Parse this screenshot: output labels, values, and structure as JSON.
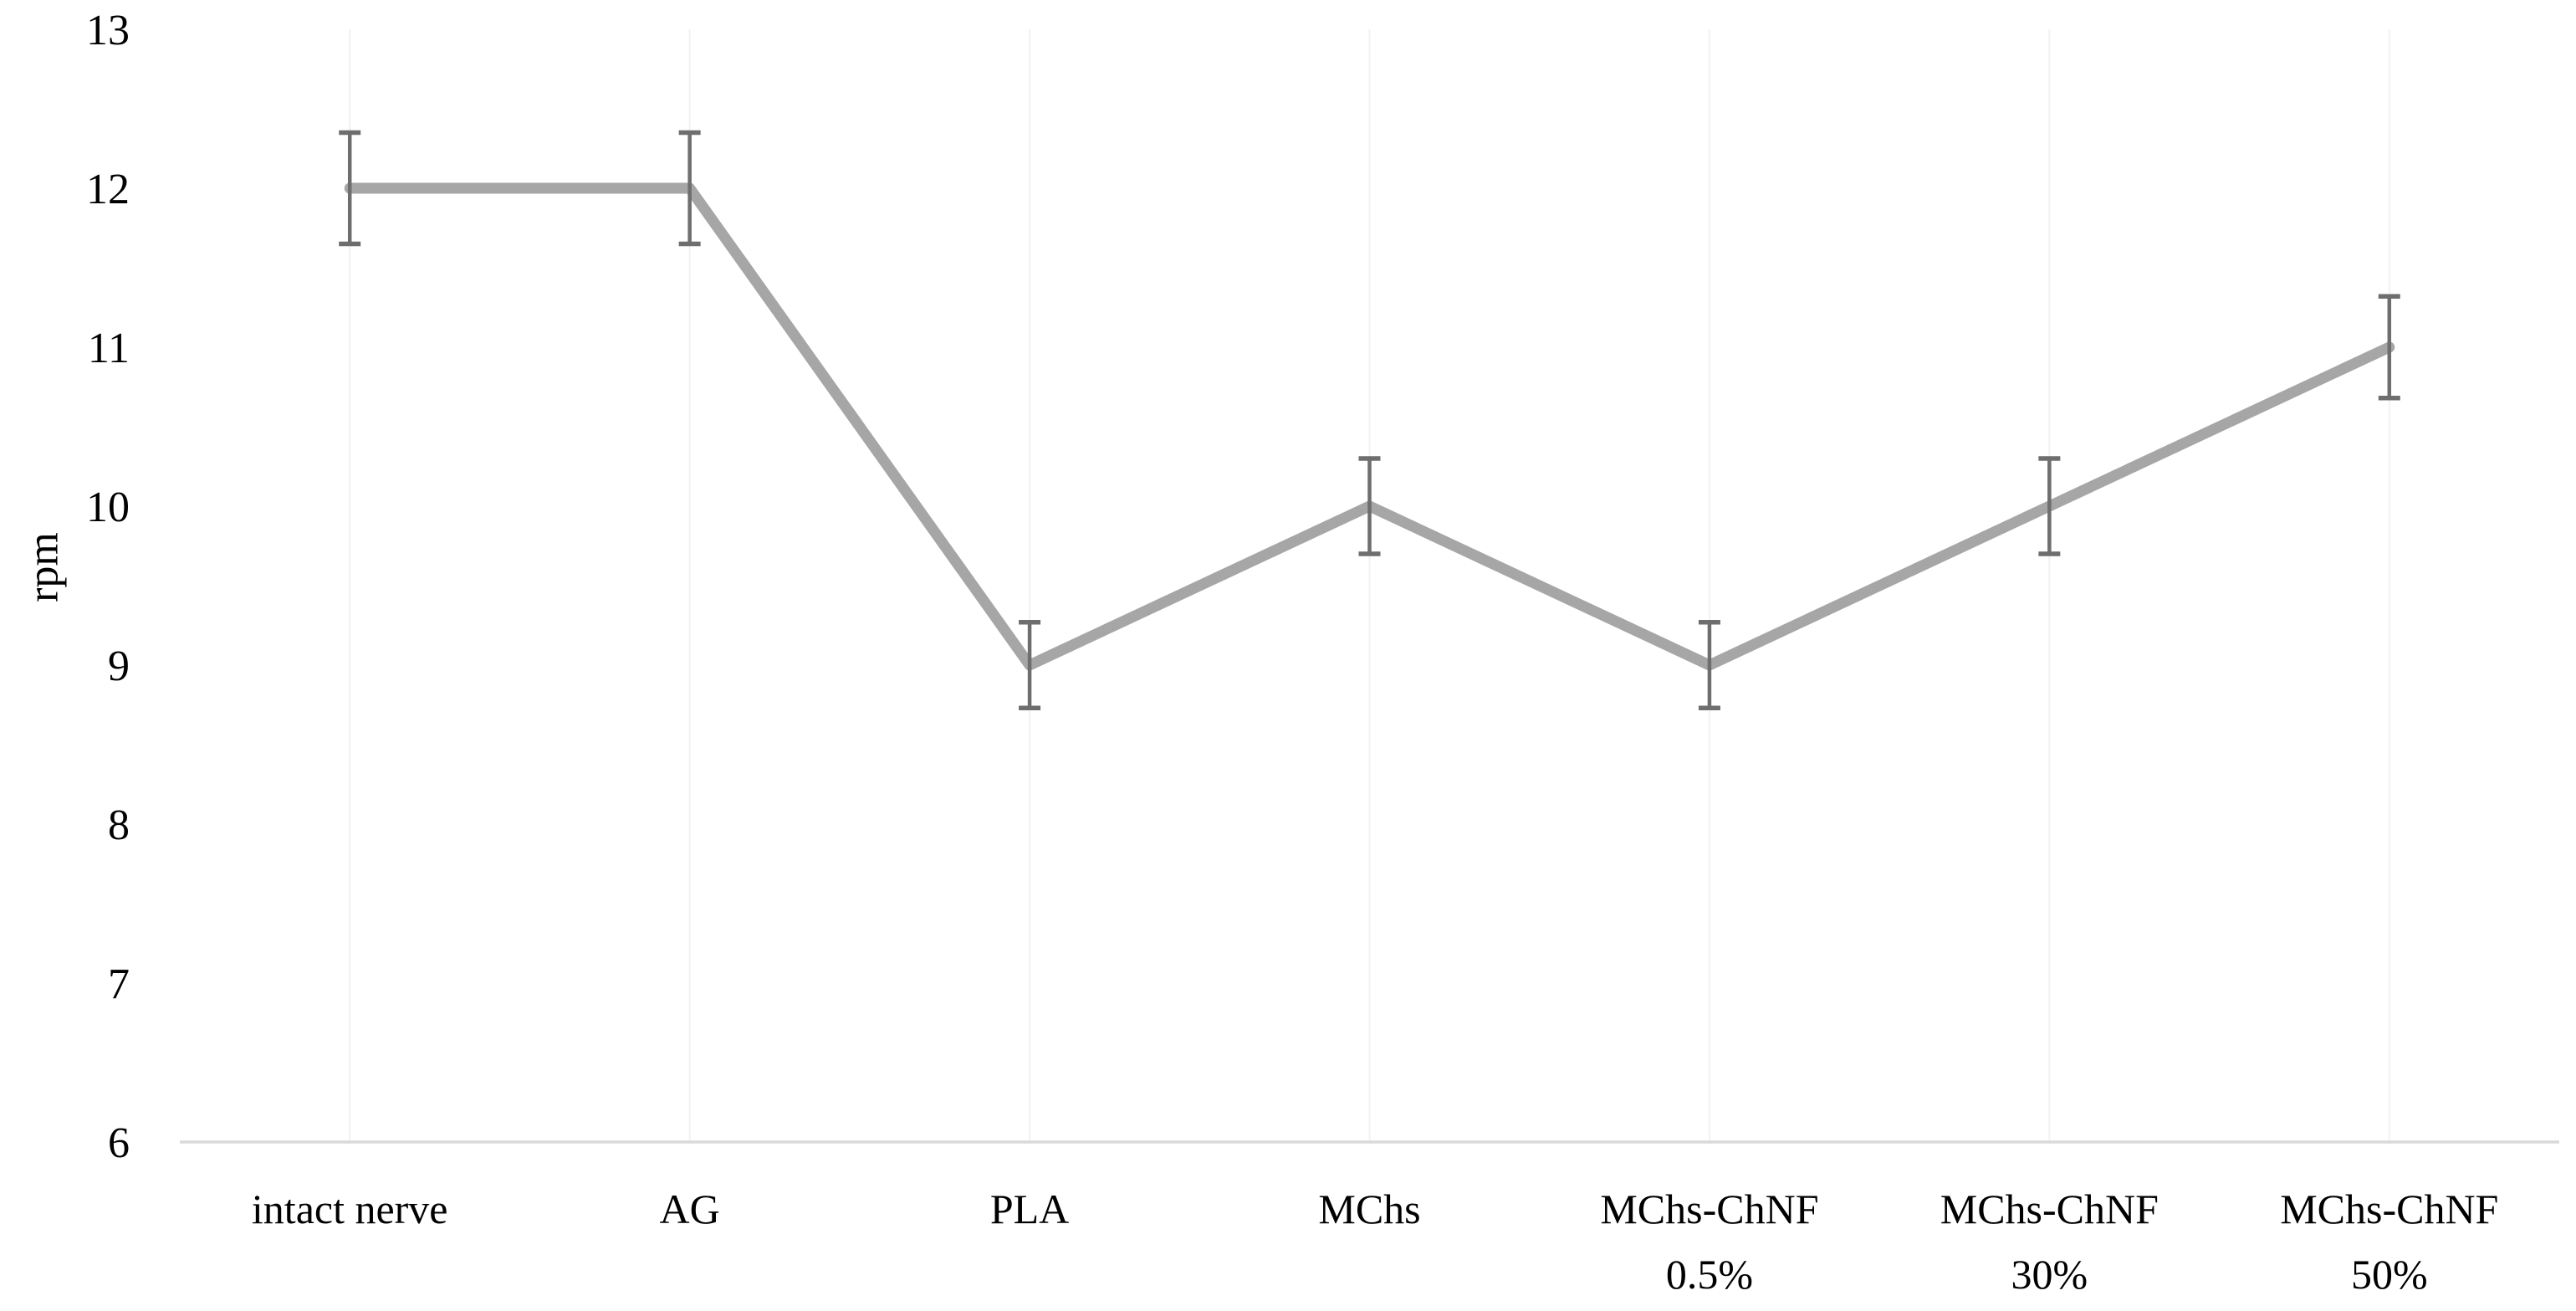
{
  "chart_data": {
    "type": "line",
    "title": "",
    "xlabel": "",
    "ylabel": "rpm",
    "categories": [
      "intact nerve",
      "AG",
      "PLA",
      "MChs",
      "MChs-ChNF 0.5%",
      "MChs-ChNF 30%",
      "MChs-ChNF 50%"
    ],
    "category_label_lines": [
      [
        "intact nerve"
      ],
      [
        "AG"
      ],
      [
        "PLA"
      ],
      [
        "MChs"
      ],
      [
        "MChs-ChNF",
        "0.5%"
      ],
      [
        "MChs-ChNF",
        "30%"
      ],
      [
        "MChs-ChNF",
        "50%"
      ]
    ],
    "series": [
      {
        "name": "rpm",
        "values": [
          12,
          12,
          9,
          10,
          9,
          10,
          11
        ],
        "error_bars": [
          0.35,
          0.35,
          0.27,
          0.3,
          0.27,
          0.3,
          0.32
        ]
      }
    ],
    "ylim": [
      6,
      13
    ],
    "yticks": [
      6,
      7,
      8,
      9,
      10,
      11,
      12,
      13
    ],
    "grid": "vertical category gridlines",
    "legend_position": "none",
    "colors": {
      "line": "#a6a6a6",
      "error_bar": "#6e6e6e",
      "gridline": "#f2f2f2",
      "axis_line": "#d9d9d9",
      "text": "#000000"
    }
  }
}
